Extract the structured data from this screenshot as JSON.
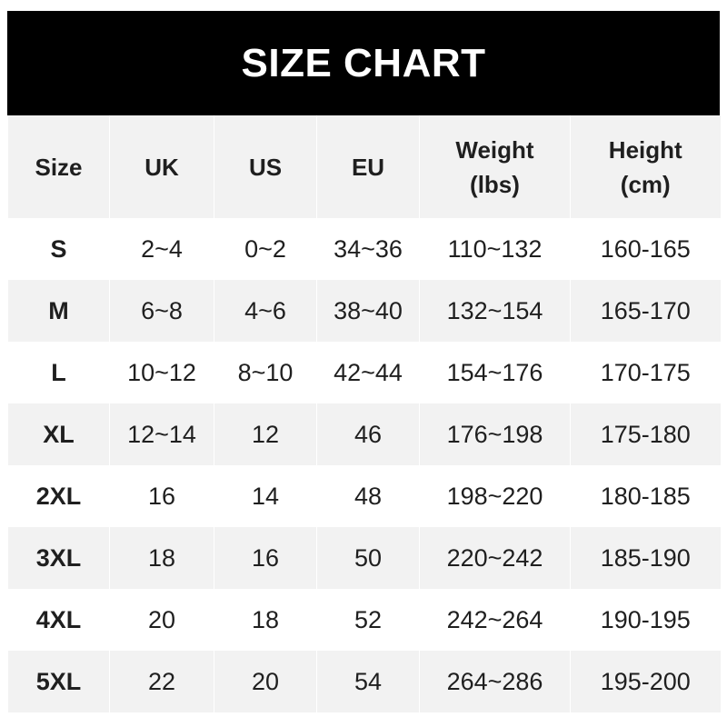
{
  "title": "SIZE CHART",
  "columns": [
    "Size",
    "UK",
    "US",
    "EU",
    "Weight\n(lbs)",
    "Height\n(cm)"
  ],
  "rows": [
    [
      "S",
      "2~4",
      "0~2",
      "34~36",
      "110~132",
      "160-165"
    ],
    [
      "M",
      "6~8",
      "4~6",
      "38~40",
      "132~154",
      "165-170"
    ],
    [
      "L",
      "10~12",
      "8~10",
      "42~44",
      "154~176",
      "170-175"
    ],
    [
      "XL",
      "12~14",
      "12",
      "46",
      "176~198",
      "175-180"
    ],
    [
      "2XL",
      "16",
      "14",
      "48",
      "198~220",
      "180-185"
    ],
    [
      "3XL",
      "18",
      "16",
      "50",
      "220~242",
      "185-190"
    ],
    [
      "4XL",
      "20",
      "18",
      "52",
      "242~264",
      "190-195"
    ],
    [
      "5XL",
      "22",
      "20",
      "54",
      "264~286",
      "195-200"
    ]
  ]
}
